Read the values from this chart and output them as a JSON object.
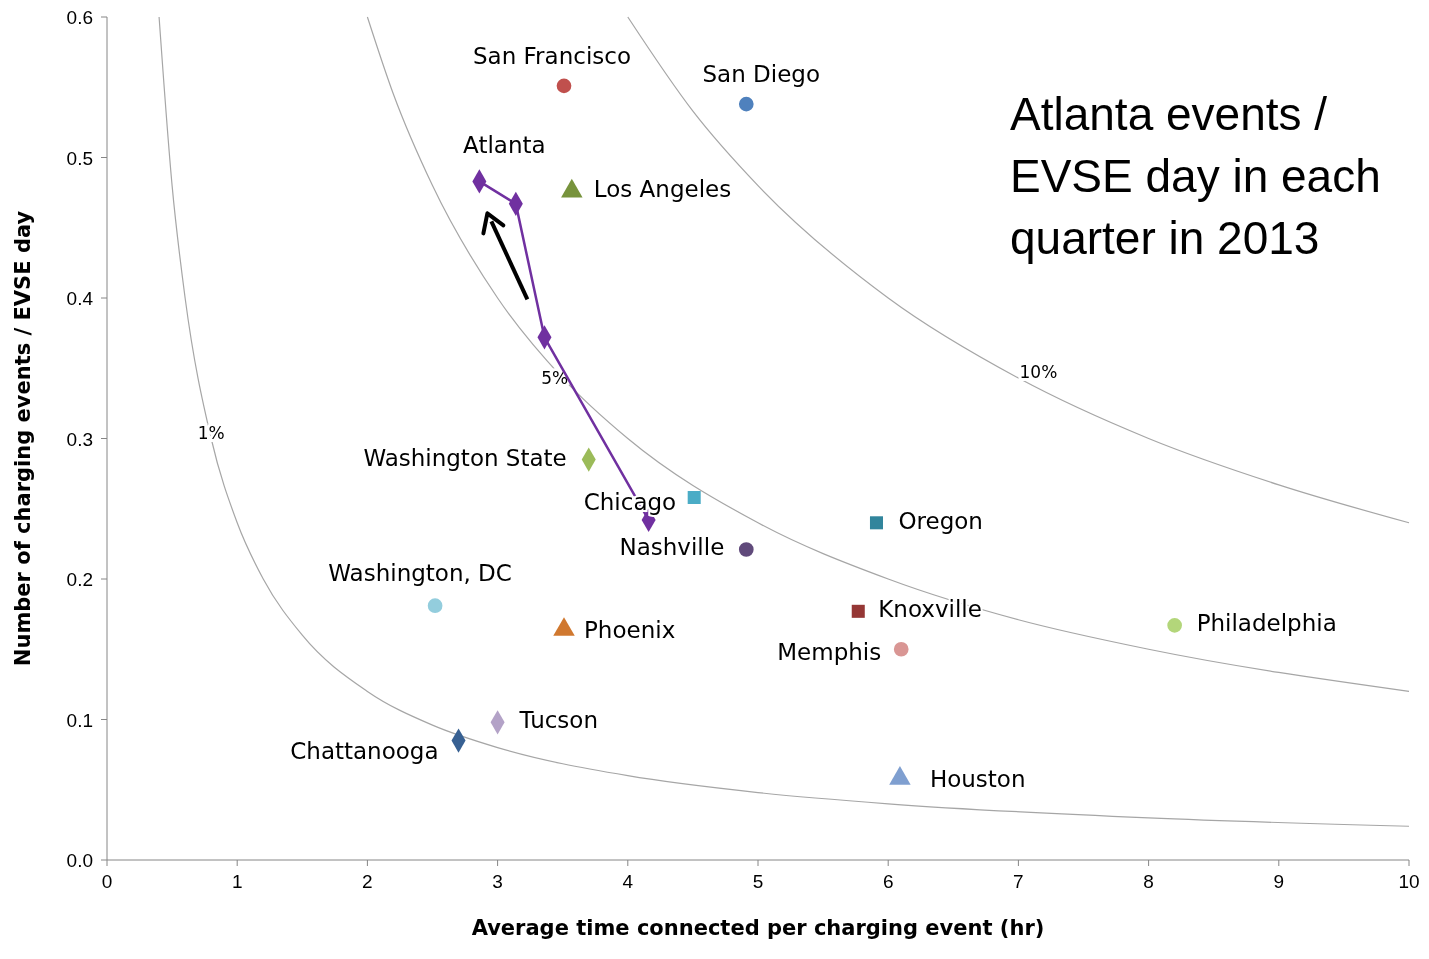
{
  "chart_data": {
    "type": "scatter",
    "xlabel": "Average time connected per charging event (hr)",
    "ylabel": "Number of charging events / EVSE day",
    "xlim": [
      0,
      10
    ],
    "xticks": [
      0,
      1,
      2,
      3,
      4,
      5,
      6,
      7,
      8,
      9,
      10
    ],
    "ylim": [
      0,
      0.6
    ],
    "yticks": [
      {
        "value": 0,
        "label": "0.0"
      },
      0.1,
      0.2,
      0.3,
      0.4,
      0.5,
      0.6
    ],
    "legend": false,
    "grid": false,
    "annotations": [
      "Atlanta events / EVSE day in each quarter in 2013"
    ],
    "series": [
      {
        "name": "1%",
        "type": "line",
        "color": "#a6a6a6",
        "marker": "none",
        "x": [
          0.4,
          0.5,
          0.6,
          0.8,
          1,
          1.2,
          1.5,
          2,
          2.5,
          3,
          4,
          5,
          6,
          8,
          10
        ],
        "values": [
          0.6,
          0.48,
          0.4,
          0.3,
          0.24,
          0.2,
          0.16,
          0.12,
          0.096,
          0.08,
          0.06,
          0.048,
          0.04,
          0.03,
          0.024
        ]
      },
      {
        "name": "5%",
        "type": "line",
        "color": "#a6a6a6",
        "marker": "none",
        "x": [
          2,
          2.2,
          2.5,
          3,
          3.5,
          4,
          5,
          6,
          7,
          8,
          10
        ],
        "values": [
          0.6,
          0.545,
          0.48,
          0.4,
          0.343,
          0.3,
          0.24,
          0.2,
          0.171,
          0.15,
          0.12
        ]
      },
      {
        "name": "10%",
        "type": "line",
        "color": "#a6a6a6",
        "marker": "none",
        "x": [
          4,
          4.5,
          5,
          6,
          7,
          8,
          9,
          10
        ],
        "values": [
          0.6,
          0.533,
          0.48,
          0.4,
          0.343,
          0.3,
          0.267,
          0.24
        ]
      },
      {
        "name": "Atlanta",
        "type": "line",
        "color": "#7030a0",
        "marker": "diamond",
        "x": [
          2.86,
          3.14,
          3.36,
          4.16
        ],
        "values": [
          0.483,
          0.467,
          0.372,
          0.242
        ]
      },
      {
        "name": "San Francisco",
        "color": "#c0504d",
        "marker": "circle",
        "x": [
          3.51
        ],
        "values": [
          0.551
        ]
      },
      {
        "name": "San Diego",
        "color": "#4f81bd",
        "marker": "circle",
        "x": [
          4.91
        ],
        "values": [
          0.538
        ]
      },
      {
        "name": "Los Angeles",
        "color": "#77933c",
        "marker": "triangle",
        "x": [
          3.57
        ],
        "values": [
          0.476
        ]
      },
      {
        "name": "Washington State",
        "color": "#9bbb59",
        "marker": "diamond",
        "x": [
          3.7
        ],
        "values": [
          0.285
        ]
      },
      {
        "name": "Chicago",
        "color": "#4bacc6",
        "marker": "square",
        "x": [
          4.51
        ],
        "values": [
          0.258
        ]
      },
      {
        "name": "Oregon",
        "color": "#31859c",
        "marker": "square",
        "x": [
          5.91
        ],
        "values": [
          0.24
        ]
      },
      {
        "name": "Nashville",
        "color": "#604a7b",
        "marker": "circle",
        "x": [
          4.91
        ],
        "values": [
          0.221
        ]
      },
      {
        "name": "Washington, DC",
        "color": "#93cddd",
        "marker": "circle",
        "x": [
          2.52
        ],
        "values": [
          0.181
        ]
      },
      {
        "name": "Phoenix",
        "color": "#d0782f",
        "marker": "triangle",
        "x": [
          3.51
        ],
        "values": [
          0.164
        ]
      },
      {
        "name": "Knoxville",
        "color": "#953735",
        "marker": "square",
        "x": [
          5.77
        ],
        "values": [
          0.177
        ]
      },
      {
        "name": "Memphis",
        "color": "#d99694",
        "marker": "circle",
        "x": [
          6.1
        ],
        "values": [
          0.15
        ]
      },
      {
        "name": "Philadelphia",
        "color": "#b3d67a",
        "marker": "circle",
        "x": [
          8.2
        ],
        "values": [
          0.167
        ]
      },
      {
        "name": "Tucson",
        "color": "#b3a2c7",
        "marker": "diamond",
        "x": [
          3.0
        ],
        "values": [
          0.098
        ]
      },
      {
        "name": "Chattanooga",
        "color": "#376092",
        "marker": "diamond",
        "x": [
          2.7
        ],
        "values": [
          0.085
        ]
      },
      {
        "name": "Houston",
        "color": "#7f9fd0",
        "marker": "triangle",
        "x": [
          6.09
        ],
        "values": [
          0.058
        ]
      }
    ]
  }
}
